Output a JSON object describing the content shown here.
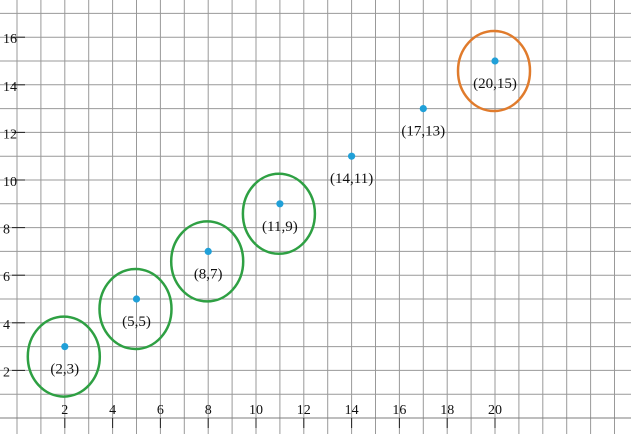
{
  "chart_data": {
    "type": "scatter",
    "title": "",
    "xlabel": "",
    "ylabel": "",
    "xlim": [
      0,
      26
    ],
    "ylim": [
      0,
      17
    ],
    "grid": true,
    "x_ticks": [
      2,
      4,
      6,
      8,
      10,
      12,
      14,
      16,
      18,
      20
    ],
    "y_ticks": [
      2,
      4,
      6,
      8,
      10,
      12,
      14,
      16
    ],
    "points": [
      {
        "x": 2,
        "y": 3,
        "label": "(2,3)",
        "highlight": "green"
      },
      {
        "x": 5,
        "y": 5,
        "label": "(5,5)",
        "highlight": "green"
      },
      {
        "x": 8,
        "y": 7,
        "label": "(8,7)",
        "highlight": "green"
      },
      {
        "x": 11,
        "y": 9,
        "label": "(11,9)",
        "highlight": "green"
      },
      {
        "x": 14,
        "y": 11,
        "label": "(14,11)",
        "highlight": ""
      },
      {
        "x": 17,
        "y": 13,
        "label": "(17,13)",
        "highlight": ""
      },
      {
        "x": 20,
        "y": 15,
        "label": "(20,15)",
        "highlight": "orange"
      }
    ]
  },
  "colors": {
    "point": "#20a0d8",
    "green": "#2ea043",
    "orange": "#e07b2c",
    "grid": "#999999",
    "text": "#111111"
  }
}
